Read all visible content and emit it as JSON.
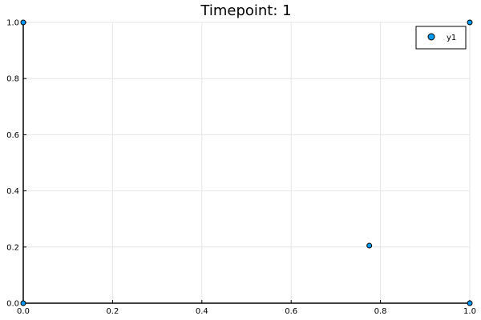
{
  "chart_data": {
    "type": "scatter",
    "title": "Timepoint: 1",
    "xlabel": "",
    "ylabel": "",
    "xlim": [
      0.0,
      1.0
    ],
    "ylim": [
      0.0,
      1.0
    ],
    "xticks": [
      "0.0",
      "0.2",
      "0.4",
      "0.6",
      "0.8",
      "1.0"
    ],
    "yticks": [
      "0.0",
      "0.2",
      "0.4",
      "0.6",
      "0.8",
      "1.0"
    ],
    "grid": true,
    "legend_position": "top-right",
    "series": [
      {
        "name": "y1",
        "color": "#009AF9",
        "points": [
          {
            "x": 0.0,
            "y": 1.0
          },
          {
            "x": 1.0,
            "y": 1.0
          },
          {
            "x": 0.775,
            "y": 0.205
          },
          {
            "x": 0.0,
            "y": 0.0
          },
          {
            "x": 1.0,
            "y": 0.0
          }
        ]
      }
    ]
  }
}
